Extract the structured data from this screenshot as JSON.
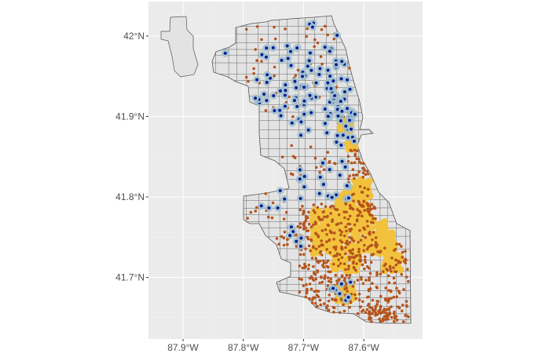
{
  "map": {
    "type": "point-map",
    "x_ticks": [
      {
        "lon": -87.9,
        "label": "87.9°W"
      },
      {
        "lon": -87.8,
        "label": "87.8°W"
      },
      {
        "lon": -87.7,
        "label": "87.7°W"
      },
      {
        "lon": -87.6,
        "label": "87.6°W"
      }
    ],
    "y_ticks": [
      {
        "lat": 42.0,
        "label": "42°N"
      },
      {
        "lat": 41.9,
        "label": "41.9°N"
      },
      {
        "lat": 41.8,
        "label": "41.8°N"
      },
      {
        "lat": 41.7,
        "label": "41.7°N"
      }
    ],
    "colors": {
      "panel": "#ebebeb",
      "grid": "#ffffff",
      "polygon_fill": "#e3e3e3",
      "polygon_stroke": "#555555",
      "orange_points": "#b5541c",
      "yellow_points": "#f2c23c",
      "blue_points": "#0a1f8f",
      "blue_halo": "#a9c6d6"
    }
  }
}
